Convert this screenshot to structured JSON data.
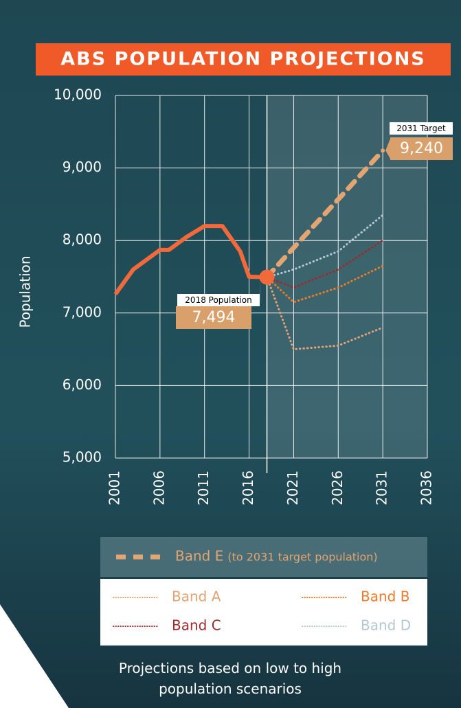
{
  "chart_data": {
    "type": "line",
    "title": "ABS POPULATION PROJECTIONS",
    "y_label": "Population",
    "xlim": [
      2001,
      2036
    ],
    "xticks": [
      2001,
      2006,
      2011,
      2016,
      2021,
      2026,
      2031,
      2036
    ],
    "ylim": [
      5000,
      10000
    ],
    "yticks": [
      {
        "value": 5000,
        "label": "5,000"
      },
      {
        "value": 6000,
        "label": "6,000"
      },
      {
        "value": 7000,
        "label": "7,000"
      },
      {
        "value": 8000,
        "label": "8,000"
      },
      {
        "value": 9000,
        "label": "9,000"
      },
      {
        "value": 10000,
        "label": "10,000"
      }
    ],
    "grid": true,
    "series": [
      {
        "x": [
          2001,
          2003,
          2006,
          2007,
          2009,
          2011,
          2013,
          2015,
          2016,
          2018
        ],
        "values": [
          7260,
          7600,
          7870,
          7870,
          8050,
          8200,
          8200,
          7850,
          7500,
          7494
        ],
        "color": "#f26a3c",
        "style": "solid"
      },
      {
        "name": "Band E",
        "note": "(to 2031 target population)",
        "x": [
          2018,
          2021,
          2024,
          2027,
          2031
        ],
        "values": [
          7494,
          7900,
          8300,
          8700,
          9240
        ],
        "color": "#e3a571",
        "style": "dashed"
      },
      {
        "name": "Band A",
        "x": [
          2018,
          2021,
          2026,
          2031
        ],
        "values": [
          7494,
          6500,
          6550,
          6800
        ],
        "color": "#e2a374",
        "style": "dotted"
      },
      {
        "name": "Band B",
        "x": [
          2018,
          2021,
          2026,
          2031
        ],
        "values": [
          7494,
          7150,
          7350,
          7650
        ],
        "color": "#f07a2a",
        "style": "dotted"
      },
      {
        "name": "Band C",
        "x": [
          2018,
          2021,
          2026,
          2031
        ],
        "values": [
          7494,
          7350,
          7600,
          8000
        ],
        "color": "#9e2b2b",
        "style": "dotted"
      },
      {
        "name": "Band D",
        "x": [
          2018,
          2021,
          2026,
          2031
        ],
        "values": [
          7494,
          7600,
          7850,
          8350
        ],
        "color": "#b4c7cf",
        "style": "dotted"
      }
    ],
    "annotations": [
      {
        "text": "2018 Population",
        "x": 2018,
        "value": 7494,
        "value_label": "7,494"
      },
      {
        "text": "2031 Target",
        "x": 2031,
        "value": 9240,
        "value_label": "9,240"
      }
    ],
    "footnote": "Projections based on low to high population scenarios"
  }
}
